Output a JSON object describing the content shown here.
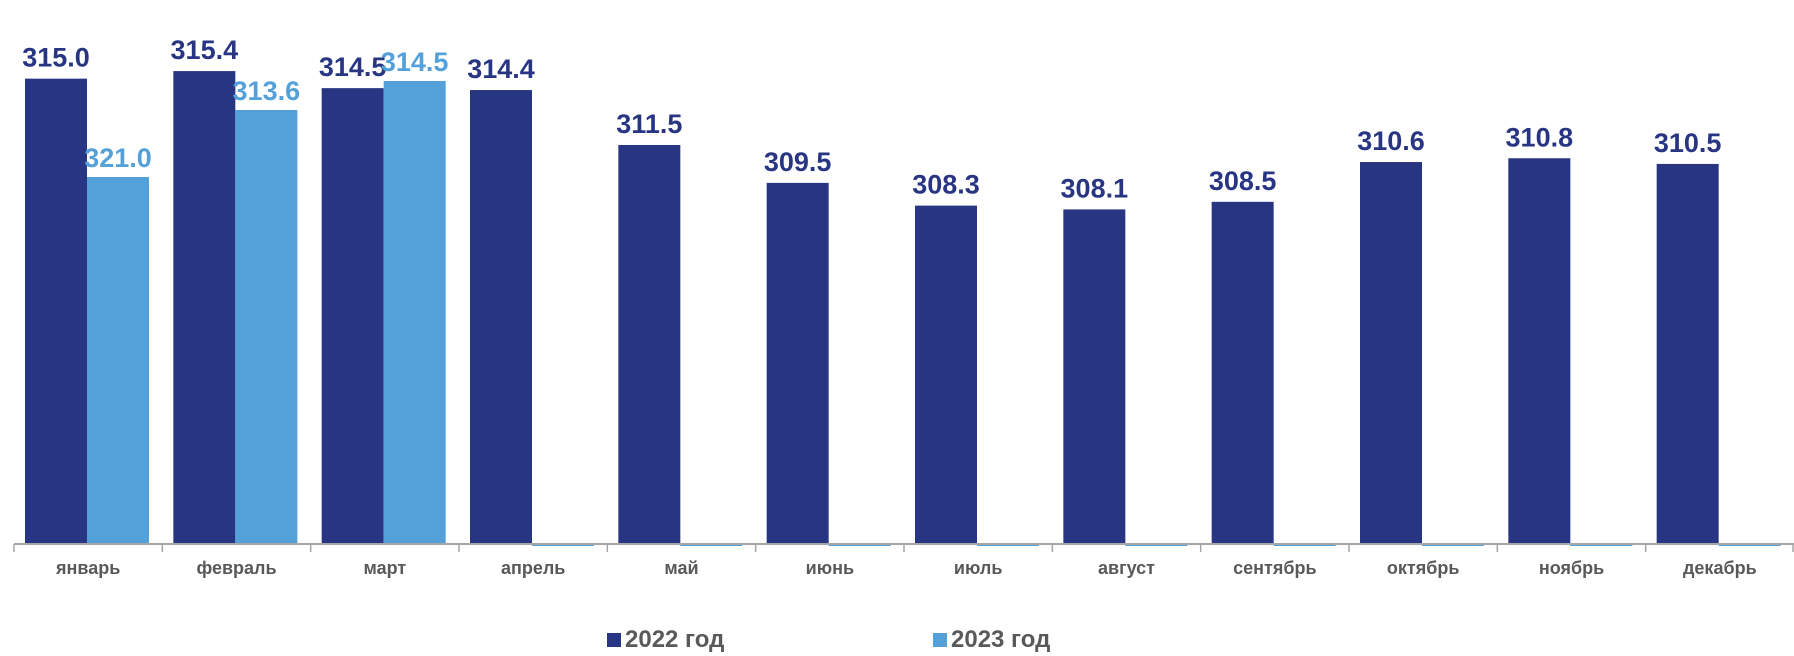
{
  "colors": {
    "series_2022": "#283583",
    "series_2023": "#54a0d8",
    "axis": "#a6a6a6",
    "tick_label": "#595959"
  },
  "chart_data": {
    "type": "bar",
    "categories": [
      "январь",
      "февраль",
      "март",
      "апрель",
      "май",
      "июнь",
      "июль",
      "август",
      "сентябрь",
      "октябрь",
      "ноябрь",
      "декабрь"
    ],
    "series": [
      {
        "name": "2022 год",
        "values": [
          315.0,
          315.4,
          314.5,
          314.4,
          311.5,
          309.5,
          308.3,
          308.1,
          308.5,
          310.6,
          310.8,
          310.5
        ],
        "labels": [
          "315.0",
          "315.4",
          "314.5",
          "314.4",
          "311.5",
          "309.5",
          "308.3",
          "308.1",
          "308.5",
          "310.6",
          "310.8",
          "310.5"
        ]
      },
      {
        "name": "2023 год",
        "values": [
          321.0,
          313.6,
          314.5,
          null,
          null,
          null,
          null,
          null,
          null,
          null,
          null,
          null
        ],
        "labels": [
          "321.0",
          "313.6",
          "314.5",
          "",
          "",
          "",
          "",
          "",
          "",
          "",
          "",
          ""
        ]
      }
    ],
    "title": "",
    "xlabel": "",
    "ylabel": "",
    "legend": "bottom",
    "grid": false
  },
  "legend": {
    "items": [
      "2022 год",
      "2023 год"
    ]
  }
}
